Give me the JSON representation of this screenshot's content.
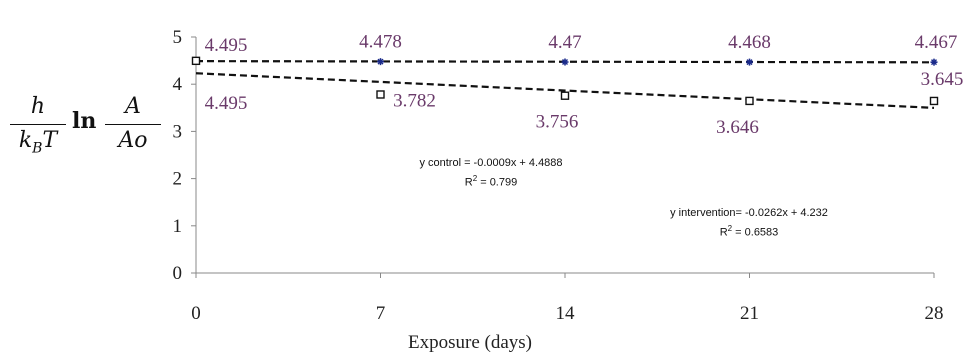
{
  "chart_data": {
    "type": "line",
    "xlabel": "Exposure (days)",
    "x": [
      0,
      7,
      14,
      21,
      28
    ],
    "xlim": [
      0,
      28
    ],
    "ylim": [
      0,
      5
    ],
    "yticks": [
      0,
      1,
      2,
      3,
      4,
      5
    ],
    "grid": false,
    "legend": "none",
    "ylabel_parts": {
      "num1": "h",
      "den1": "k",
      "den1_sub": "B",
      "den1_tail": "T",
      "ln": "ln",
      "num2": "A",
      "den2": "Ao"
    },
    "series": [
      {
        "values": [
          4.495,
          4.478,
          4.47,
          4.468,
          4.467
        ],
        "labels": [
          "4.495",
          "4.478",
          "4.47",
          "4.468",
          "4.467"
        ],
        "marker": "asterisk",
        "trend": {
          "slope": -0.0009,
          "intercept": 4.4888
        }
      },
      {
        "values": [
          4.495,
          3.782,
          3.756,
          3.646,
          3.645
        ],
        "labels": [
          "4.495",
          "3.782",
          "3.756",
          "3.646",
          "3.645"
        ],
        "marker": "open-square",
        "trend": {
          "slope": -0.0262,
          "intercept": 4.232
        }
      }
    ],
    "annotations": {
      "control_eq": "y control = -0.0009x + 4.4888",
      "control_r2_prefix": "R",
      "control_r2_sup": "2",
      "control_r2_value": " = 0.799",
      "intervention_eq": "y intervention= -0.0262x + 4.232",
      "intervention_r2_prefix": "R",
      "intervention_r2_sup": "2",
      "intervention_r2_value": " = 0.6583"
    },
    "colors": {
      "axis": "#888888",
      "tick_text": "#222222",
      "series_text": "#6a3a6a",
      "control_marker": "#1a2a8a",
      "intervention_marker": "#111111",
      "trend": "#111111"
    }
  }
}
